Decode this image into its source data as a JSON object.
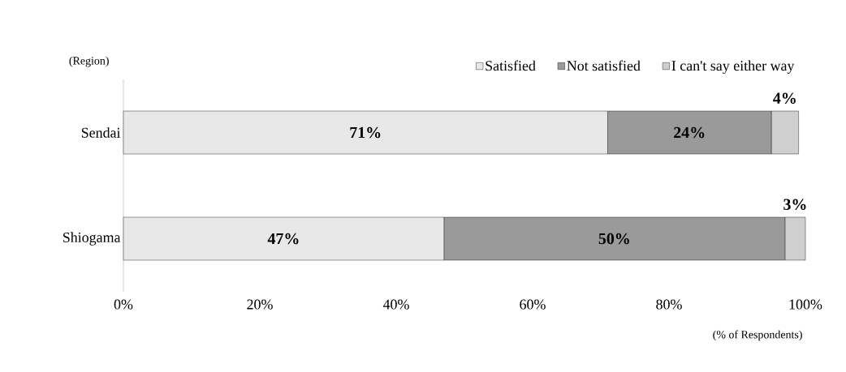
{
  "chart_data": {
    "type": "bar",
    "orientation": "horizontal",
    "stacked": true,
    "categories": [
      "Sendai",
      "Shiogama"
    ],
    "series": [
      {
        "name": "Satisfied",
        "color": "#e8e8e8",
        "values": [
          71,
          47
        ]
      },
      {
        "name": "Not satisfied",
        "color": "#9a9a9a",
        "values": [
          24,
          50
        ]
      },
      {
        "name": "I can't say either way",
        "color": "#cfcfcf",
        "values": [
          4,
          3
        ]
      }
    ],
    "value_labels": [
      [
        "71%",
        "47%"
      ],
      [
        "24%",
        "50%"
      ],
      [
        "4%",
        "3%"
      ]
    ],
    "xlim": [
      0,
      100
    ],
    "xticks": [
      {
        "value": 0,
        "label": "0%"
      },
      {
        "value": 20,
        "label": "20%"
      },
      {
        "value": 40,
        "label": "40%"
      },
      {
        "value": 60,
        "label": "60%"
      },
      {
        "value": 80,
        "label": "80%"
      },
      {
        "value": 100,
        "label": "100%"
      }
    ],
    "xlabel": "(% of Respondents)",
    "ylabel": "(Region)",
    "legend": "top",
    "grid": false
  }
}
